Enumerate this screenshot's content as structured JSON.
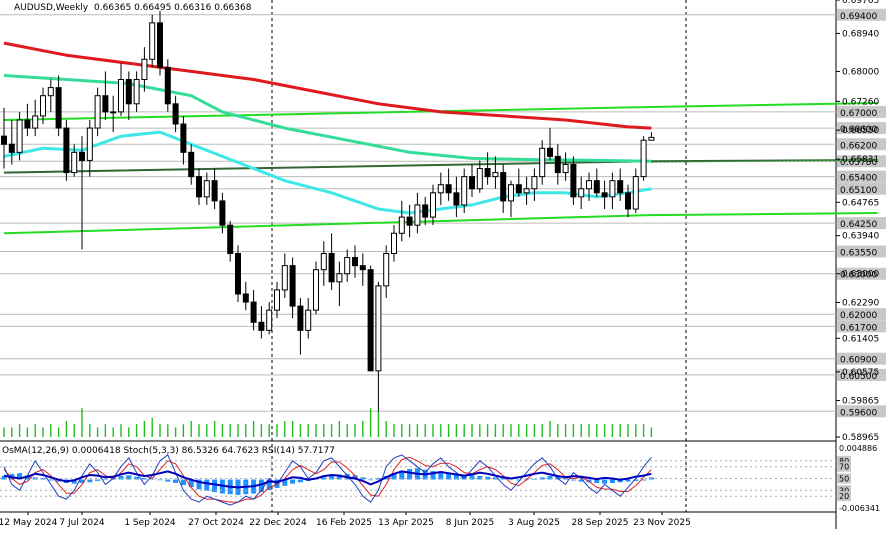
{
  "header": {
    "symbol": "AUDUSD,Weekly",
    "ohlc": "0.66365 0.66495 0.66316 0.66368",
    "indicators": "OsMA(12,26,9) 0.0006418  Stoch(5,3,3) 86.5326 64.7623  RSI(14) 57.7177"
  },
  "colors": {
    "background": "#ffffff",
    "bull_candle": "#ffffff",
    "bear_candle": "#000000",
    "ma_red": "#e0191e",
    "ma_cyan": "#3fe8e8",
    "ma_aqua": "#33dd99",
    "trend_green": "#22dd22",
    "volume": "#22bb22",
    "osma": "#1e90ff",
    "stoch_main": "#1f3fbf",
    "stoch_signal": "#dd2222",
    "rsi": "#0000bb"
  },
  "chart_data": {
    "type": "candlestick",
    "price_axis": {
      "range": [
        0.58965,
        0.69765
      ],
      "ticks": [
        "0.69765",
        "0.68940",
        "0.68000",
        "0.67260",
        "0.66550",
        "0.65831",
        "0.64765",
        "0.63940",
        "0.63000",
        "0.62290",
        "0.61405",
        "0.60575",
        "0.59865",
        "0.58965"
      ],
      "horizontal_levels": [
        "0.69400",
        "0.67000",
        "0.66600",
        "0.66200",
        "0.65780",
        "0.65400",
        "0.65100",
        "0.64250",
        "0.63550",
        "0.63000",
        "0.62000",
        "0.61700",
        "0.60900",
        "0.60500",
        "0.59600"
      ]
    },
    "time_axis": [
      "12 May 2024",
      "7 Jul 2024",
      "1 Sep 2024",
      "27 Oct 2024",
      "22 Dec 2024",
      "16 Feb 2025",
      "13 Apr 2025",
      "8 Jun 2025",
      "3 Aug 2025",
      "28 Sep 2025",
      "23 Nov 2025"
    ],
    "candles": [
      [
        0.664,
        0.671,
        0.656,
        0.662
      ],
      [
        0.662,
        0.668,
        0.657,
        0.66
      ],
      [
        0.66,
        0.67,
        0.658,
        0.668
      ],
      [
        0.668,
        0.672,
        0.664,
        0.666
      ],
      [
        0.666,
        0.673,
        0.664,
        0.669
      ],
      [
        0.669,
        0.676,
        0.667,
        0.674
      ],
      [
        0.674,
        0.678,
        0.67,
        0.676
      ],
      [
        0.676,
        0.679,
        0.664,
        0.666
      ],
      [
        0.666,
        0.668,
        0.653,
        0.655
      ],
      [
        0.655,
        0.662,
        0.654,
        0.66
      ],
      [
        0.66,
        0.664,
        0.636,
        0.658
      ],
      [
        0.658,
        0.668,
        0.654,
        0.666
      ],
      [
        0.666,
        0.676,
        0.664,
        0.674
      ],
      [
        0.674,
        0.68,
        0.668,
        0.67
      ],
      [
        0.67,
        0.674,
        0.665,
        0.67
      ],
      [
        0.67,
        0.682,
        0.669,
        0.678
      ],
      [
        0.678,
        0.68,
        0.668,
        0.672
      ],
      [
        0.672,
        0.68,
        0.67,
        0.678
      ],
      [
        0.678,
        0.686,
        0.675,
        0.683
      ],
      [
        0.683,
        0.694,
        0.681,
        0.692
      ],
      [
        0.692,
        0.695,
        0.679,
        0.681
      ],
      [
        0.681,
        0.683,
        0.67,
        0.672
      ],
      [
        0.672,
        0.674,
        0.665,
        0.667
      ],
      [
        0.667,
        0.669,
        0.657,
        0.66
      ],
      [
        0.66,
        0.662,
        0.652,
        0.654
      ],
      [
        0.654,
        0.656,
        0.647,
        0.649
      ],
      [
        0.649,
        0.655,
        0.647,
        0.653
      ],
      [
        0.653,
        0.656,
        0.646,
        0.648
      ],
      [
        0.648,
        0.65,
        0.64,
        0.642
      ],
      [
        0.642,
        0.643,
        0.633,
        0.635
      ],
      [
        0.635,
        0.637,
        0.623,
        0.625
      ],
      [
        0.625,
        0.628,
        0.621,
        0.623
      ],
      [
        0.623,
        0.626,
        0.616,
        0.618
      ],
      [
        0.618,
        0.622,
        0.614,
        0.616
      ],
      [
        0.616,
        0.623,
        0.615,
        0.621
      ],
      [
        0.621,
        0.628,
        0.619,
        0.626
      ],
      [
        0.626,
        0.635,
        0.624,
        0.632
      ],
      [
        0.632,
        0.634,
        0.619,
        0.622
      ],
      [
        0.622,
        0.624,
        0.61,
        0.616
      ],
      [
        0.616,
        0.624,
        0.614,
        0.621
      ],
      [
        0.621,
        0.633,
        0.62,
        0.631
      ],
      [
        0.631,
        0.638,
        0.627,
        0.635
      ],
      [
        0.635,
        0.64,
        0.626,
        0.628
      ],
      [
        0.628,
        0.633,
        0.622,
        0.63
      ],
      [
        0.63,
        0.636,
        0.628,
        0.634
      ],
      [
        0.634,
        0.637,
        0.629,
        0.632
      ],
      [
        0.632,
        0.635,
        0.627,
        0.631
      ],
      [
        0.631,
        0.632,
        0.606,
        0.606
      ],
      [
        0.606,
        0.628,
        0.596,
        0.627
      ],
      [
        0.627,
        0.637,
        0.624,
        0.635
      ],
      [
        0.635,
        0.642,
        0.633,
        0.64
      ],
      [
        0.64,
        0.648,
        0.638,
        0.644
      ],
      [
        0.644,
        0.647,
        0.639,
        0.642
      ],
      [
        0.642,
        0.65,
        0.64,
        0.647
      ],
      [
        0.647,
        0.649,
        0.642,
        0.644
      ],
      [
        0.644,
        0.652,
        0.642,
        0.65
      ],
      [
        0.65,
        0.655,
        0.647,
        0.652
      ],
      [
        0.652,
        0.656,
        0.648,
        0.65
      ],
      [
        0.65,
        0.654,
        0.644,
        0.647
      ],
      [
        0.647,
        0.656,
        0.645,
        0.654
      ],
      [
        0.654,
        0.657,
        0.649,
        0.651
      ],
      [
        0.651,
        0.658,
        0.65,
        0.656
      ],
      [
        0.656,
        0.66,
        0.652,
        0.654
      ],
      [
        0.654,
        0.659,
        0.651,
        0.655
      ],
      [
        0.655,
        0.657,
        0.645,
        0.648
      ],
      [
        0.648,
        0.653,
        0.644,
        0.652
      ],
      [
        0.652,
        0.656,
        0.649,
        0.65
      ],
      [
        0.65,
        0.654,
        0.647,
        0.651
      ],
      [
        0.651,
        0.656,
        0.648,
        0.654
      ],
      [
        0.654,
        0.663,
        0.652,
        0.661
      ],
      [
        0.661,
        0.666,
        0.658,
        0.659
      ],
      [
        0.659,
        0.662,
        0.652,
        0.655
      ],
      [
        0.655,
        0.66,
        0.653,
        0.657
      ],
      [
        0.657,
        0.659,
        0.647,
        0.649
      ],
      [
        0.649,
        0.654,
        0.646,
        0.651
      ],
      [
        0.651,
        0.655,
        0.648,
        0.653
      ],
      [
        0.653,
        0.656,
        0.649,
        0.65
      ],
      [
        0.65,
        0.653,
        0.646,
        0.649
      ],
      [
        0.649,
        0.655,
        0.646,
        0.653
      ],
      [
        0.653,
        0.656,
        0.648,
        0.65
      ],
      [
        0.65,
        0.652,
        0.644,
        0.646
      ],
      [
        0.646,
        0.656,
        0.645,
        0.654
      ],
      [
        0.654,
        0.664,
        0.653,
        0.663
      ],
      [
        0.663,
        0.665,
        0.663,
        0.6637
      ]
    ],
    "ma_red": [
      [
        0,
        0.687
      ],
      [
        8,
        0.684
      ],
      [
        16,
        0.682
      ],
      [
        24,
        0.68
      ],
      [
        32,
        0.678
      ],
      [
        40,
        0.675
      ],
      [
        48,
        0.672
      ],
      [
        56,
        0.67
      ],
      [
        64,
        0.669
      ],
      [
        72,
        0.668
      ],
      [
        80,
        0.6663
      ],
      [
        83,
        0.666
      ]
    ],
    "ma_aqua": [
      [
        0,
        0.679
      ],
      [
        8,
        0.678
      ],
      [
        16,
        0.677
      ],
      [
        24,
        0.674
      ],
      [
        28,
        0.67
      ],
      [
        36,
        0.666
      ],
      [
        44,
        0.663
      ],
      [
        52,
        0.66
      ],
      [
        60,
        0.6585
      ],
      [
        68,
        0.6582
      ],
      [
        76,
        0.658
      ],
      [
        83,
        0.6578
      ]
    ],
    "ma_cyan": [
      [
        0,
        0.659
      ],
      [
        5,
        0.661
      ],
      [
        10,
        0.6605
      ],
      [
        15,
        0.664
      ],
      [
        20,
        0.665
      ],
      [
        24,
        0.662
      ],
      [
        28,
        0.659
      ],
      [
        32,
        0.656
      ],
      [
        36,
        0.653
      ],
      [
        42,
        0.65
      ],
      [
        48,
        0.646
      ],
      [
        52,
        0.645
      ],
      [
        56,
        0.646
      ],
      [
        60,
        0.647
      ],
      [
        64,
        0.649
      ],
      [
        68,
        0.65
      ],
      [
        72,
        0.65
      ],
      [
        76,
        0.649
      ],
      [
        80,
        0.65
      ],
      [
        83,
        0.651
      ]
    ],
    "trend_upper": [
      [
        0,
        0.668
      ],
      [
        83,
        0.6712
      ],
      [
        112,
        0.6722
      ]
    ],
    "trend_lower": [
      [
        0,
        0.64
      ],
      [
        83,
        0.6445
      ],
      [
        112,
        0.645
      ]
    ],
    "trend_mid": [
      [
        0,
        0.655
      ],
      [
        83,
        0.6578
      ],
      [
        112,
        0.6581
      ]
    ],
    "trend_mid_dotted": [
      [
        83,
        0.6575
      ],
      [
        112,
        0.6581
      ]
    ],
    "volume": [
      3,
      3,
      4,
      3,
      4,
      3,
      4,
      3,
      5,
      4,
      9,
      4,
      3,
      4,
      3,
      4,
      3,
      4,
      5,
      6,
      4,
      4,
      3,
      4,
      5,
      4,
      4,
      5,
      4,
      4,
      4,
      4,
      5,
      4,
      4,
      4,
      5,
      5,
      4,
      4,
      4,
      4,
      4,
      5,
      4,
      4,
      5,
      9,
      8,
      5,
      4,
      4,
      4,
      4,
      4,
      4,
      4,
      4,
      4,
      4,
      4,
      4,
      4,
      4,
      4,
      4,
      4,
      4,
      4,
      4,
      5,
      4,
      4,
      4,
      4,
      4,
      4,
      4,
      4,
      4,
      4,
      4,
      4,
      3
    ],
    "oscillator": {
      "levels": [
        "0.004886",
        "80",
        "70",
        "50",
        "30",
        "20",
        "-0.006341"
      ],
      "osma": [
        0.5,
        0.8,
        0.9,
        0.6,
        0.3,
        0.2,
        0.0,
        -0.3,
        -0.5,
        -0.6,
        -0.5,
        -0.4,
        -0.2,
        0.1,
        0.3,
        0.5,
        0.6,
        0.4,
        0.2,
        0.1,
        -0.1,
        -0.3,
        -0.5,
        -0.8,
        -1.1,
        -1.4,
        -1.6,
        -1.8,
        -2.0,
        -2.1,
        -2.2,
        -2.1,
        -2.0,
        -1.8,
        -1.5,
        -1.2,
        -0.9,
        -0.6,
        -0.4,
        -0.2,
        0.1,
        0.3,
        0.5,
        0.7,
        0.8,
        0.6,
        0.3,
        -0.1,
        0.2,
        0.5,
        0.9,
        1.2,
        1.5,
        1.6,
        1.4,
        1.2,
        1.0,
        0.9,
        0.8,
        0.7,
        0.6,
        0.5,
        0.4,
        0.3,
        0.2,
        0.1,
        0.0,
        -0.1,
        0.1,
        0.3,
        0.5,
        0.4,
        0.2,
        0.0,
        -0.3,
        -0.4,
        -0.5,
        -0.6,
        -0.5,
        -0.4,
        -0.3,
        -0.2,
        0.0,
        0.3
      ],
      "stoch_main": [
        70,
        40,
        30,
        55,
        80,
        60,
        40,
        20,
        15,
        30,
        55,
        75,
        60,
        40,
        50,
        70,
        85,
        60,
        40,
        55,
        80,
        90,
        60,
        30,
        15,
        10,
        20,
        15,
        10,
        5,
        10,
        20,
        15,
        30,
        50,
        40,
        60,
        80,
        70,
        50,
        60,
        80,
        85,
        70,
        55,
        40,
        20,
        10,
        30,
        70,
        85,
        90,
        80,
        70,
        60,
        75,
        85,
        70,
        60,
        50,
        65,
        80,
        70,
        55,
        40,
        30,
        45,
        60,
        75,
        85,
        70,
        50,
        40,
        60,
        50,
        35,
        25,
        40,
        30,
        20,
        35,
        50,
        70,
        86
      ],
      "stoch_signal": [
        65,
        50,
        40,
        45,
        60,
        65,
        55,
        40,
        25,
        25,
        40,
        60,
        65,
        55,
        50,
        60,
        75,
        70,
        55,
        50,
        65,
        80,
        75,
        55,
        35,
        20,
        15,
        15,
        12,
        10,
        10,
        15,
        15,
        22,
        35,
        40,
        50,
        65,
        72,
        65,
        58,
        65,
        78,
        78,
        68,
        55,
        38,
        22,
        20,
        40,
        65,
        82,
        86,
        80,
        72,
        70,
        76,
        76,
        70,
        60,
        58,
        65,
        70,
        65,
        55,
        42,
        38,
        48,
        60,
        72,
        75,
        65,
        52,
        50,
        52,
        45,
        35,
        32,
        32,
        28,
        28,
        38,
        52,
        65
      ],
      "rsi": [
        55,
        52,
        50,
        53,
        58,
        56,
        52,
        48,
        45,
        47,
        52,
        56,
        55,
        52,
        53,
        57,
        60,
        57,
        54,
        56,
        59,
        62,
        58,
        52,
        48,
        44,
        42,
        40,
        38,
        36,
        35,
        36,
        37,
        40,
        45,
        44,
        48,
        52,
        51,
        48,
        50,
        54,
        56,
        55,
        52,
        50,
        46,
        40,
        45,
        52,
        58,
        62,
        60,
        58,
        57,
        59,
        61,
        59,
        57,
        55,
        57,
        60,
        58,
        55,
        52,
        50,
        52,
        55,
        58,
        60,
        57,
        54,
        52,
        54,
        53,
        51,
        49,
        51,
        50,
        48,
        50,
        53,
        55,
        58
      ]
    }
  }
}
